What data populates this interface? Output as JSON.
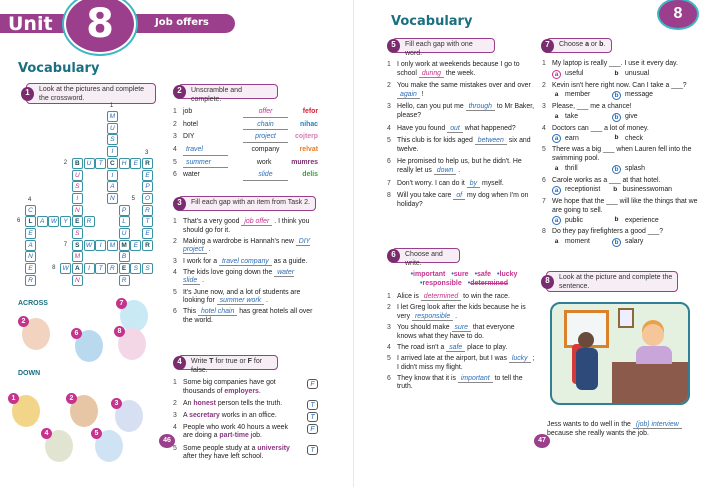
{
  "left_page": {
    "unit_label": "Unit",
    "unit_number": "8",
    "unit_title": "Job offers",
    "section_title": "Vocabulary",
    "page_number": "46",
    "task1": {
      "number": "1",
      "instruction": "Look at the pictures and complete the crossword.",
      "words": [
        {
          "clue": "1",
          "direction": "down",
          "answer": "MUSICIAN"
        },
        {
          "clue": "2",
          "direction": "across",
          "answer": "BUTCHER"
        },
        {
          "clue": "2",
          "direction": "down",
          "answer": "BUSINESSMAN"
        },
        {
          "clue": "3",
          "direction": "down",
          "answer": "REPORTER"
        },
        {
          "clue": "4",
          "direction": "down",
          "answer": "CLEANER"
        },
        {
          "clue": "5",
          "direction": "down",
          "answer": "PLUMBER"
        },
        {
          "clue": "6",
          "direction": "across",
          "answer": "LAWYER"
        },
        {
          "clue": "7",
          "direction": "across",
          "answer": "SWIMMER"
        },
        {
          "clue": "8",
          "direction": "across",
          "answer": "WAITRESS"
        }
      ],
      "across_label": "ACROSS",
      "down_label": "DOWN",
      "across_pictures": [
        "2",
        "6",
        "7",
        "8"
      ],
      "down_pictures": [
        "1",
        "2",
        "3",
        "4",
        "5"
      ]
    },
    "task2": {
      "number": "2",
      "instruction": "Unscramble and complete.",
      "items": [
        {
          "n": "1",
          "before": "job",
          "answer": "offer",
          "after": "",
          "scrambled": "fefor",
          "color": "#d8203c",
          "answer_first": false
        },
        {
          "n": "2",
          "before": "hotel",
          "answer": "chain",
          "after": "",
          "scrambled": "nihac",
          "color": "#1f7fc0",
          "answer_first": false
        },
        {
          "n": "3",
          "before": "DIY",
          "answer": "project",
          "after": "",
          "scrambled": "cojterp",
          "color": "#d47fb8",
          "answer_first": false
        },
        {
          "n": "4",
          "before": "",
          "answer": "travel",
          "after": "company",
          "scrambled": "relvat",
          "color": "#f07a20",
          "answer_first": true
        },
        {
          "n": "5",
          "before": "",
          "answer": "summer",
          "after": "work",
          "scrambled": "mumres",
          "color": "#7a2d6e",
          "answer_first": true
        },
        {
          "n": "6",
          "before": "water",
          "answer": "slide",
          "after": "",
          "scrambled": "delis",
          "color": "#3aa13a",
          "answer_first": false
        }
      ]
    },
    "task3": {
      "number": "3",
      "instruction": "Fill each gap with an item from Task 2.",
      "items": [
        {
          "n": "1",
          "before": "That's a very good",
          "answer": "job offer",
          "after": ". I think you should go for it."
        },
        {
          "n": "2",
          "before": "Making a wardrobe is Hannah's new",
          "answer": "DIY project",
          "after": "."
        },
        {
          "n": "3",
          "before": "I work for a",
          "answer": "travel company",
          "after": "as a guide."
        },
        {
          "n": "4",
          "before": "The kids love going down the",
          "answer": "water slide",
          "after": "."
        },
        {
          "n": "5",
          "before": "It's June now, and a lot of students are looking for",
          "answer": "summer work",
          "after": "."
        },
        {
          "n": "6",
          "before": "This",
          "answer": "hotel chain",
          "after": "has great hotels all over the world."
        }
      ]
    },
    "task4": {
      "number": "4",
      "instruction_pre": "Write ",
      "instruction_t": "T",
      "instruction_mid": " for true or ",
      "instruction_f": "F",
      "instruction_post": " for false.",
      "items": [
        {
          "n": "1",
          "pre": "Some big companies have got thousands of ",
          "key": "employers",
          "post": ".",
          "answer": "F"
        },
        {
          "n": "2",
          "pre": "An ",
          "key": "honest",
          "post": " person tells the truth.",
          "answer": "T"
        },
        {
          "n": "3",
          "pre": "A ",
          "key": "secretary",
          "post": " works in an office.",
          "answer": "T"
        },
        {
          "n": "4",
          "pre": "People who work 40 hours a week are doing a ",
          "key": "part-time",
          "post": " job.",
          "answer": "F"
        },
        {
          "n": "5",
          "pre": "Some people study at a ",
          "key": "university",
          "post": " after they have left school.",
          "answer": "T"
        }
      ]
    }
  },
  "right_page": {
    "section_title": "Vocabulary",
    "unit_number": "8",
    "page_number": "47",
    "task5": {
      "number": "5",
      "instruction": "Fill each gap with one word.",
      "items": [
        {
          "n": "1",
          "before": "I only work at weekends because I go to school",
          "answer": "during",
          "after": "the week.",
          "pink": true
        },
        {
          "n": "2",
          "before": "You make the same mistakes over and over",
          "answer": "again",
          "after": "!"
        },
        {
          "n": "3",
          "before": "Hello, can you put me",
          "answer": "through",
          "after": "to Mr Baker, please?"
        },
        {
          "n": "4",
          "before": "Have you found",
          "answer": "out",
          "after": "what happened?"
        },
        {
          "n": "5",
          "before": "This club is for kids aged",
          "answer": "between",
          "after": "six and twelve."
        },
        {
          "n": "6",
          "before": "He promised to help us, but he didn't. He really let us",
          "answer": "down",
          "after": "."
        },
        {
          "n": "7",
          "before": "Don't worry. I can do it",
          "answer": "by",
          "after": "myself."
        },
        {
          "n": "8",
          "before": "Will you take care",
          "answer": "of",
          "after": "my dog when I'm on holiday?"
        }
      ]
    },
    "task6": {
      "number": "6",
      "instruction": "Choose and write.",
      "word_bank": [
        "important",
        "sure",
        "safe",
        "lucky",
        "responsible",
        "determined"
      ],
      "items": [
        {
          "n": "1",
          "before": "Alice is",
          "answer": "determined",
          "after": "to win the race.",
          "pink": true
        },
        {
          "n": "2",
          "before": "I let Greg look after the kids because he is very",
          "answer": "responsible",
          "after": "."
        },
        {
          "n": "3",
          "before": "You should make",
          "answer": "sure",
          "after": "that everyone knows what they have to do."
        },
        {
          "n": "4",
          "before": "The road isn't a",
          "answer": "safe",
          "after": "place to play."
        },
        {
          "n": "5",
          "before": "I arrived late at the airport, but I was",
          "answer": "lucky",
          "after": "; I didn't miss my flight."
        },
        {
          "n": "6",
          "before": "They know that it is",
          "answer": "important",
          "after": "to tell the truth."
        }
      ]
    },
    "task7": {
      "number": "7",
      "instruction_pre": "Choose ",
      "instruction_a": "a",
      "instruction_mid": " or ",
      "instruction_b": "b",
      "instruction_post": ".",
      "items": [
        {
          "n": "1",
          "q": "My laptop is really ___. I use it every day.",
          "a": "useful",
          "b": "unusual",
          "chosen": "a"
        },
        {
          "n": "2",
          "q": "Kevin isn't here right now. Can I take a ___?",
          "a": "member",
          "b": "message",
          "chosen": "b"
        },
        {
          "n": "3",
          "q": "Please, ___ me a chance!",
          "a": "take",
          "b": "give",
          "chosen": "b"
        },
        {
          "n": "4",
          "q": "Doctors can ___ a lot of money.",
          "a": "earn",
          "b": "check",
          "chosen": "a"
        },
        {
          "n": "5",
          "q": "There was a big ___ when Lauren fell into the swimming pool.",
          "a": "thrill",
          "b": "splash",
          "chosen": "b"
        },
        {
          "n": "6",
          "q": "Carole works as a ___ at that hotel.",
          "a": "receptionist",
          "b": "businesswoman",
          "chosen": "a"
        },
        {
          "n": "7",
          "q": "We hope that the ___ will like the things that we are going to sell.",
          "a": "public",
          "b": "experience",
          "chosen": "a"
        },
        {
          "n": "8",
          "q": "Do they pay firefighters a good ___?",
          "a": "moment",
          "b": "salary",
          "chosen": "b"
        }
      ]
    },
    "task8": {
      "number": "8",
      "instruction": "Look at the picture and complete the sentence.",
      "before": "Jess wants to do well in the",
      "answer": "(job) interview",
      "after": "because she really wants the job."
    }
  }
}
